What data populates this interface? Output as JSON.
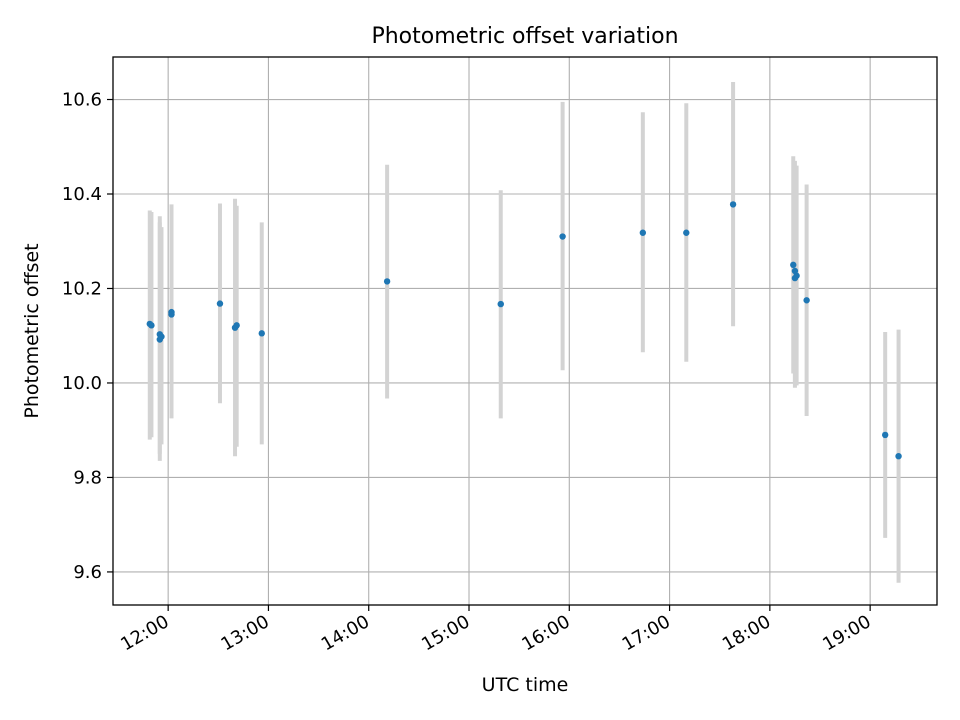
{
  "chart_data": {
    "type": "scatter",
    "title": "Photometric offset variation",
    "xlabel": "UTC time",
    "ylabel": "Photometric offset",
    "xlim": [
      "11:27",
      "19:40"
    ],
    "ylim": [
      9.53,
      10.69
    ],
    "x_ticks": [
      "12:00",
      "13:00",
      "14:00",
      "15:00",
      "16:00",
      "17:00",
      "18:00",
      "19:00"
    ],
    "y_ticks": [
      "9.6",
      "9.8",
      "10.0",
      "10.2",
      "10.4",
      "10.6"
    ],
    "grid": true,
    "legend": "none",
    "marker_color": "#1f77b4",
    "errorbar_color": "#d3d3d3",
    "points": [
      {
        "x": "11:49",
        "y": 10.125,
        "err_low": 9.88,
        "err_high": 10.365
      },
      {
        "x": "11:50",
        "y": 10.122,
        "err_low": 9.885,
        "err_high": 10.362
      },
      {
        "x": "11:55",
        "y": 10.103,
        "err_low": 9.835,
        "err_high": 10.353
      },
      {
        "x": "11:55",
        "y": 10.092,
        "err_low": 9.85,
        "err_high": 10.34
      },
      {
        "x": "11:56",
        "y": 10.098,
        "err_low": 9.87,
        "err_high": 10.33
      },
      {
        "x": "12:02",
        "y": 10.15,
        "err_low": 9.925,
        "err_high": 10.378
      },
      {
        "x": "12:02",
        "y": 10.145,
        "err_low": 9.93,
        "err_high": 10.375
      },
      {
        "x": "12:31",
        "y": 10.168,
        "err_low": 9.957,
        "err_high": 10.38
      },
      {
        "x": "12:40",
        "y": 10.117,
        "err_low": 9.845,
        "err_high": 10.39
      },
      {
        "x": "12:41",
        "y": 10.122,
        "err_low": 9.865,
        "err_high": 10.375
      },
      {
        "x": "12:56",
        "y": 10.105,
        "err_low": 9.87,
        "err_high": 10.34
      },
      {
        "x": "14:11",
        "y": 10.215,
        "err_low": 9.967,
        "err_high": 10.462
      },
      {
        "x": "15:19",
        "y": 10.167,
        "err_low": 9.925,
        "err_high": 10.408
      },
      {
        "x": "15:56",
        "y": 10.31,
        "err_low": 10.027,
        "err_high": 10.595
      },
      {
        "x": "16:44",
        "y": 10.318,
        "err_low": 10.065,
        "err_high": 10.573
      },
      {
        "x": "17:10",
        "y": 10.318,
        "err_low": 10.045,
        "err_high": 10.592
      },
      {
        "x": "17:38",
        "y": 10.378,
        "err_low": 10.12,
        "err_high": 10.637
      },
      {
        "x": "18:14",
        "y": 10.25,
        "err_low": 10.02,
        "err_high": 10.48
      },
      {
        "x": "18:15",
        "y": 10.237,
        "err_low": 10.0,
        "err_high": 10.47
      },
      {
        "x": "18:15",
        "y": 10.222,
        "err_low": 9.99,
        "err_high": 10.455
      },
      {
        "x": "18:16",
        "y": 10.227,
        "err_low": 9.995,
        "err_high": 10.46
      },
      {
        "x": "18:22",
        "y": 10.175,
        "err_low": 9.93,
        "err_high": 10.42
      },
      {
        "x": "19:09",
        "y": 9.89,
        "err_low": 9.672,
        "err_high": 10.108
      },
      {
        "x": "19:17",
        "y": 9.845,
        "err_low": 9.577,
        "err_high": 10.113
      }
    ]
  }
}
